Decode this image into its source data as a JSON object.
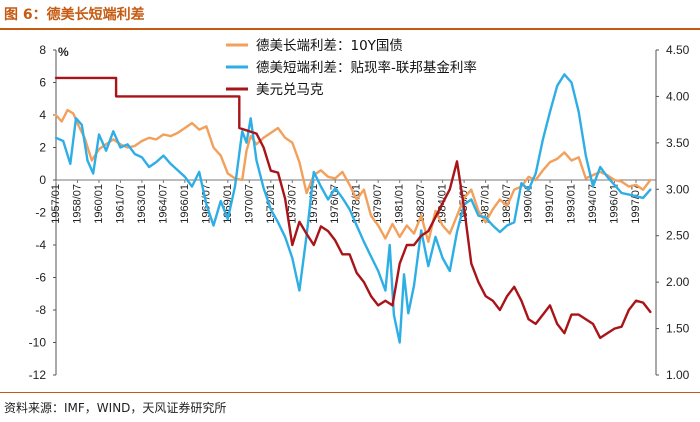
{
  "header": {
    "title": "图 6：德美长短端利差"
  },
  "footer": {
    "source": "资料来源：IMF，WIND，天风证券研究所"
  },
  "chart_data": {
    "type": "line",
    "y_unit": "%",
    "ylim_left": [
      -12,
      8
    ],
    "yticks_left": [
      -12,
      -10,
      -8,
      -6,
      -4,
      -2,
      0,
      2,
      4,
      6,
      8
    ],
    "ylim_right": [
      1.0,
      4.5
    ],
    "yticks_right": [
      "1.00",
      "1.50",
      "2.00",
      "2.50",
      "3.00",
      "3.50",
      "4.00",
      "4.50"
    ],
    "xlim": [
      1957.0,
      1998.9
    ],
    "x_ticks": [
      {
        "x": 1957.0,
        "label": "1957/01"
      },
      {
        "x": 1958.5,
        "label": "1958/07"
      },
      {
        "x": 1960.0,
        "label": "1960/01"
      },
      {
        "x": 1961.5,
        "label": "1961/07"
      },
      {
        "x": 1963.0,
        "label": "1963/01"
      },
      {
        "x": 1964.5,
        "label": "1964/07"
      },
      {
        "x": 1966.0,
        "label": "1966/01"
      },
      {
        "x": 1967.5,
        "label": "1967/07"
      },
      {
        "x": 1969.0,
        "label": "1969/01"
      },
      {
        "x": 1970.5,
        "label": "1970/07"
      },
      {
        "x": 1972.0,
        "label": "1972/01"
      },
      {
        "x": 1973.5,
        "label": "1973/07"
      },
      {
        "x": 1975.0,
        "label": "1975/01"
      },
      {
        "x": 1976.5,
        "label": "1976/07"
      },
      {
        "x": 1978.0,
        "label": "1978/01"
      },
      {
        "x": 1979.5,
        "label": "1979/07"
      },
      {
        "x": 1981.0,
        "label": "1981/01"
      },
      {
        "x": 1982.5,
        "label": "1982/07"
      },
      {
        "x": 1984.0,
        "label": "1984/01"
      },
      {
        "x": 1985.5,
        "label": "1985/07"
      },
      {
        "x": 1987.0,
        "label": "1987/01"
      },
      {
        "x": 1988.5,
        "label": "1988/07"
      },
      {
        "x": 1990.0,
        "label": "1990/01"
      },
      {
        "x": 1991.5,
        "label": "1991/07"
      },
      {
        "x": 1993.0,
        "label": "1993/01"
      },
      {
        "x": 1994.5,
        "label": "1994/07"
      },
      {
        "x": 1996.0,
        "label": "1996/01"
      },
      {
        "x": 1997.5,
        "label": "1997/07"
      }
    ],
    "series": [
      {
        "name": "德美长端利差：10Y国债",
        "axis": "left",
        "color": "#f2a05b",
        "x": [
          1957.0,
          1957.4,
          1957.8,
          1958.2,
          1958.6,
          1959.0,
          1959.5,
          1960.0,
          1960.5,
          1961.0,
          1961.5,
          1962.0,
          1962.5,
          1963.0,
          1963.5,
          1964.0,
          1964.5,
          1965.0,
          1965.5,
          1966.0,
          1966.5,
          1967.0,
          1967.5,
          1968.0,
          1968.5,
          1969.0,
          1969.5,
          1970.0,
          1970.3,
          1970.6,
          1971.0,
          1971.5,
          1972.0,
          1972.5,
          1973.0,
          1973.5,
          1974.0,
          1974.5,
          1975.0,
          1975.5,
          1976.0,
          1976.5,
          1977.0,
          1977.5,
          1978.0,
          1978.5,
          1979.0,
          1979.5,
          1980.0,
          1980.5,
          1981.0,
          1981.5,
          1982.0,
          1982.5,
          1983.0,
          1983.5,
          1984.0,
          1984.5,
          1985.0,
          1985.5,
          1986.0,
          1986.5,
          1987.0,
          1987.5,
          1988.0,
          1988.5,
          1989.0,
          1989.5,
          1990.0,
          1990.5,
          1991.0,
          1991.5,
          1992.0,
          1992.5,
          1993.0,
          1993.5,
          1994.0,
          1994.5,
          1995.0,
          1995.5,
          1996.0,
          1996.5,
          1997.0,
          1997.5,
          1998.0,
          1998.5
        ],
        "values": [
          4.0,
          3.6,
          4.3,
          4.1,
          3.3,
          2.6,
          1.2,
          1.9,
          2.2,
          2.5,
          2.2,
          2.0,
          2.1,
          2.4,
          2.6,
          2.5,
          2.8,
          2.7,
          2.9,
          3.2,
          3.5,
          3.1,
          3.3,
          2.0,
          1.5,
          0.4,
          0.1,
          0.0,
          1.8,
          2.7,
          2.2,
          2.6,
          2.9,
          3.2,
          2.6,
          2.3,
          1.1,
          -0.8,
          0.3,
          0.6,
          0.2,
          0.1,
          0.5,
          -0.3,
          -1.2,
          -0.6,
          -2.2,
          -2.8,
          -3.6,
          -2.7,
          -3.5,
          -2.8,
          -3.3,
          -2.2,
          -3.8,
          -1.9,
          -2.8,
          -3.3,
          -2.2,
          -1.1,
          -0.6,
          -1.9,
          -2.6,
          -1.8,
          -1.2,
          -1.6,
          -0.6,
          -0.4,
          0.2,
          0.0,
          0.6,
          1.1,
          1.3,
          1.7,
          1.2,
          1.4,
          0.1,
          0.3,
          0.5,
          0.3,
          0.0,
          -0.1,
          -0.4,
          -0.3,
          -0.6,
          0.0
        ]
      },
      {
        "name": "德美短端利差：贴现率-联邦基金利率",
        "axis": "left",
        "color": "#2eaee6",
        "x": [
          1957.0,
          1957.5,
          1958.0,
          1958.4,
          1958.8,
          1959.2,
          1959.6,
          1960.0,
          1960.5,
          1961.0,
          1961.5,
          1962.0,
          1962.5,
          1963.0,
          1963.5,
          1964.0,
          1964.5,
          1965.0,
          1965.5,
          1966.0,
          1966.5,
          1967.0,
          1967.5,
          1968.0,
          1968.5,
          1969.0,
          1969.5,
          1970.0,
          1970.3,
          1970.6,
          1971.0,
          1971.5,
          1972.0,
          1972.5,
          1973.0,
          1973.5,
          1974.0,
          1974.5,
          1975.0,
          1975.5,
          1976.0,
          1976.5,
          1977.0,
          1977.5,
          1978.0,
          1978.5,
          1979.0,
          1979.5,
          1980.0,
          1980.3,
          1980.6,
          1981.0,
          1981.3,
          1981.6,
          1982.0,
          1982.5,
          1983.0,
          1983.5,
          1984.0,
          1984.5,
          1985.0,
          1985.5,
          1986.0,
          1986.5,
          1987.0,
          1987.5,
          1988.0,
          1988.5,
          1989.0,
          1989.5,
          1990.0,
          1990.5,
          1991.0,
          1991.5,
          1992.0,
          1992.5,
          1993.0,
          1993.5,
          1994.0,
          1994.5,
          1995.0,
          1995.5,
          1996.0,
          1996.5,
          1997.0,
          1997.5,
          1998.0,
          1998.5
        ],
        "values": [
          2.6,
          2.4,
          1.0,
          3.8,
          3.4,
          1.2,
          0.4,
          2.8,
          1.8,
          3.0,
          2.0,
          2.2,
          1.6,
          1.4,
          0.8,
          1.1,
          1.5,
          1.0,
          0.6,
          0.2,
          -0.4,
          0.5,
          -1.5,
          -2.8,
          -1.3,
          -2.4,
          -0.4,
          3.0,
          2.3,
          3.8,
          1.2,
          -0.5,
          -1.8,
          -2.6,
          -3.5,
          -4.8,
          -6.8,
          -3.4,
          0.5,
          -0.4,
          -1.2,
          -0.5,
          -1.1,
          -1.8,
          -2.8,
          -3.8,
          -4.7,
          -5.6,
          -6.8,
          -4.0,
          -8.3,
          -10.0,
          -5.8,
          -8.2,
          -6.5,
          -3.1,
          -5.3,
          -3.5,
          -4.8,
          -5.6,
          -3.2,
          -1.5,
          -1.2,
          -2.2,
          -2.3,
          -2.8,
          -3.2,
          -2.8,
          -2.6,
          -0.2,
          -0.6,
          0.4,
          2.5,
          4.2,
          5.8,
          6.5,
          6.0,
          4.2,
          1.5,
          -0.4,
          0.8,
          0.2,
          -0.3,
          -0.8,
          -0.9,
          -1.0,
          -1.1,
          -0.6
        ]
      },
      {
        "name": "美元兑马克",
        "axis": "right",
        "color": "#a81418",
        "x": [
          1957.0,
          1961.2,
          1961.2,
          1969.8,
          1969.8,
          1971.0,
          1971.5,
          1972.0,
          1972.5,
          1973.0,
          1973.5,
          1974.0,
          1974.5,
          1975.0,
          1975.5,
          1976.0,
          1976.5,
          1977.0,
          1977.5,
          1978.0,
          1978.5,
          1979.0,
          1979.5,
          1980.0,
          1980.5,
          1981.0,
          1981.5,
          1982.0,
          1982.5,
          1983.0,
          1983.5,
          1984.0,
          1984.5,
          1985.0,
          1985.5,
          1986.0,
          1986.5,
          1987.0,
          1987.5,
          1988.0,
          1988.5,
          1989.0,
          1989.5,
          1990.0,
          1990.5,
          1991.0,
          1991.5,
          1992.0,
          1992.5,
          1993.0,
          1993.5,
          1994.0,
          1994.5,
          1995.0,
          1995.5,
          1996.0,
          1996.5,
          1997.0,
          1997.5,
          1998.0,
          1998.5
        ],
        "values": [
          4.2,
          4.2,
          4.0,
          4.0,
          3.66,
          3.6,
          3.45,
          3.2,
          3.18,
          2.9,
          2.4,
          2.65,
          2.52,
          2.4,
          2.6,
          2.55,
          2.45,
          2.3,
          2.3,
          2.1,
          2.0,
          1.85,
          1.75,
          1.8,
          1.75,
          2.2,
          2.4,
          2.4,
          2.5,
          2.55,
          2.7,
          2.85,
          3.0,
          3.3,
          2.8,
          2.2,
          2.0,
          1.85,
          1.8,
          1.7,
          1.85,
          1.95,
          1.8,
          1.6,
          1.55,
          1.65,
          1.75,
          1.55,
          1.45,
          1.65,
          1.65,
          1.6,
          1.55,
          1.4,
          1.45,
          1.5,
          1.52,
          1.7,
          1.8,
          1.78,
          1.68
        ]
      }
    ]
  }
}
